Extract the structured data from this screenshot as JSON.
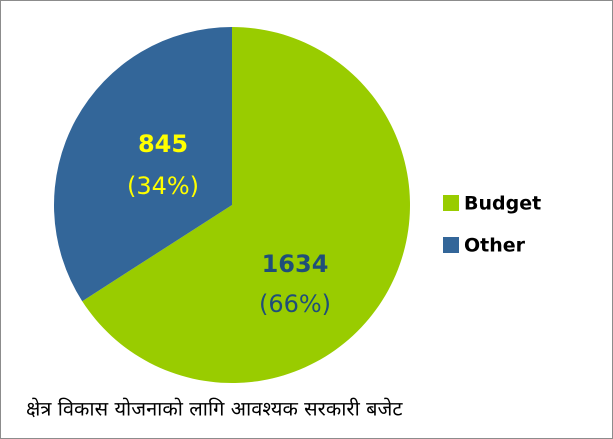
{
  "chart_data": {
    "type": "pie",
    "title": "क्षेत्र विकास योजनाको लागि आवश्यक सरकारी बजेट",
    "categories": [
      "Budget",
      "Other"
    ],
    "values": [
      1634,
      845
    ],
    "percent_labels": [
      "(66%)",
      "(34%)"
    ],
    "colors": [
      "#99cc00",
      "#336699"
    ],
    "label_colors": [
      "#1f4e79",
      "#ffff00"
    ],
    "legend": "right"
  }
}
